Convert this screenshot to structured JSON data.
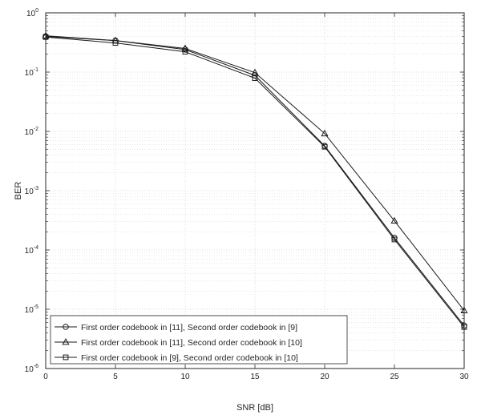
{
  "chart_data": {
    "type": "line",
    "xlabel": "SNR [dB]",
    "ylabel": "BER",
    "xlim": [
      0,
      30
    ],
    "ylim": [
      1e-06,
      1
    ],
    "yscale": "log",
    "x_ticks": [
      0,
      5,
      10,
      15,
      20,
      25,
      30
    ],
    "y_tick_exponents": [
      0,
      -1,
      -2,
      -3,
      -4,
      -5,
      -6
    ],
    "y_tick_base": "10",
    "grid": true,
    "legend_position": "bottom-left",
    "series": [
      {
        "name": "First order codebook in [11], Second order codebook in [9]",
        "marker": "circle",
        "color": "#1a1a1a",
        "x": [
          0,
          5,
          10,
          15,
          20,
          25,
          30
        ],
        "y": [
          0.4,
          0.34,
          0.24,
          0.088,
          0.0057,
          0.00016,
          5.3e-06
        ]
      },
      {
        "name": "First order codebook in [11], Second order codebook in [10]",
        "marker": "triangle",
        "color": "#1a1a1a",
        "x": [
          0,
          5,
          10,
          15,
          20,
          25,
          30
        ],
        "y": [
          0.41,
          0.34,
          0.25,
          0.098,
          0.0092,
          0.00031,
          9.5e-06
        ]
      },
      {
        "name": "First order codebook in [9], Second order codebook in [10]",
        "marker": "square",
        "color": "#1a1a1a",
        "x": [
          0,
          5,
          10,
          15,
          20,
          25,
          30
        ],
        "y": [
          0.39,
          0.31,
          0.22,
          0.079,
          0.0055,
          0.00015,
          5e-06
        ]
      }
    ]
  }
}
